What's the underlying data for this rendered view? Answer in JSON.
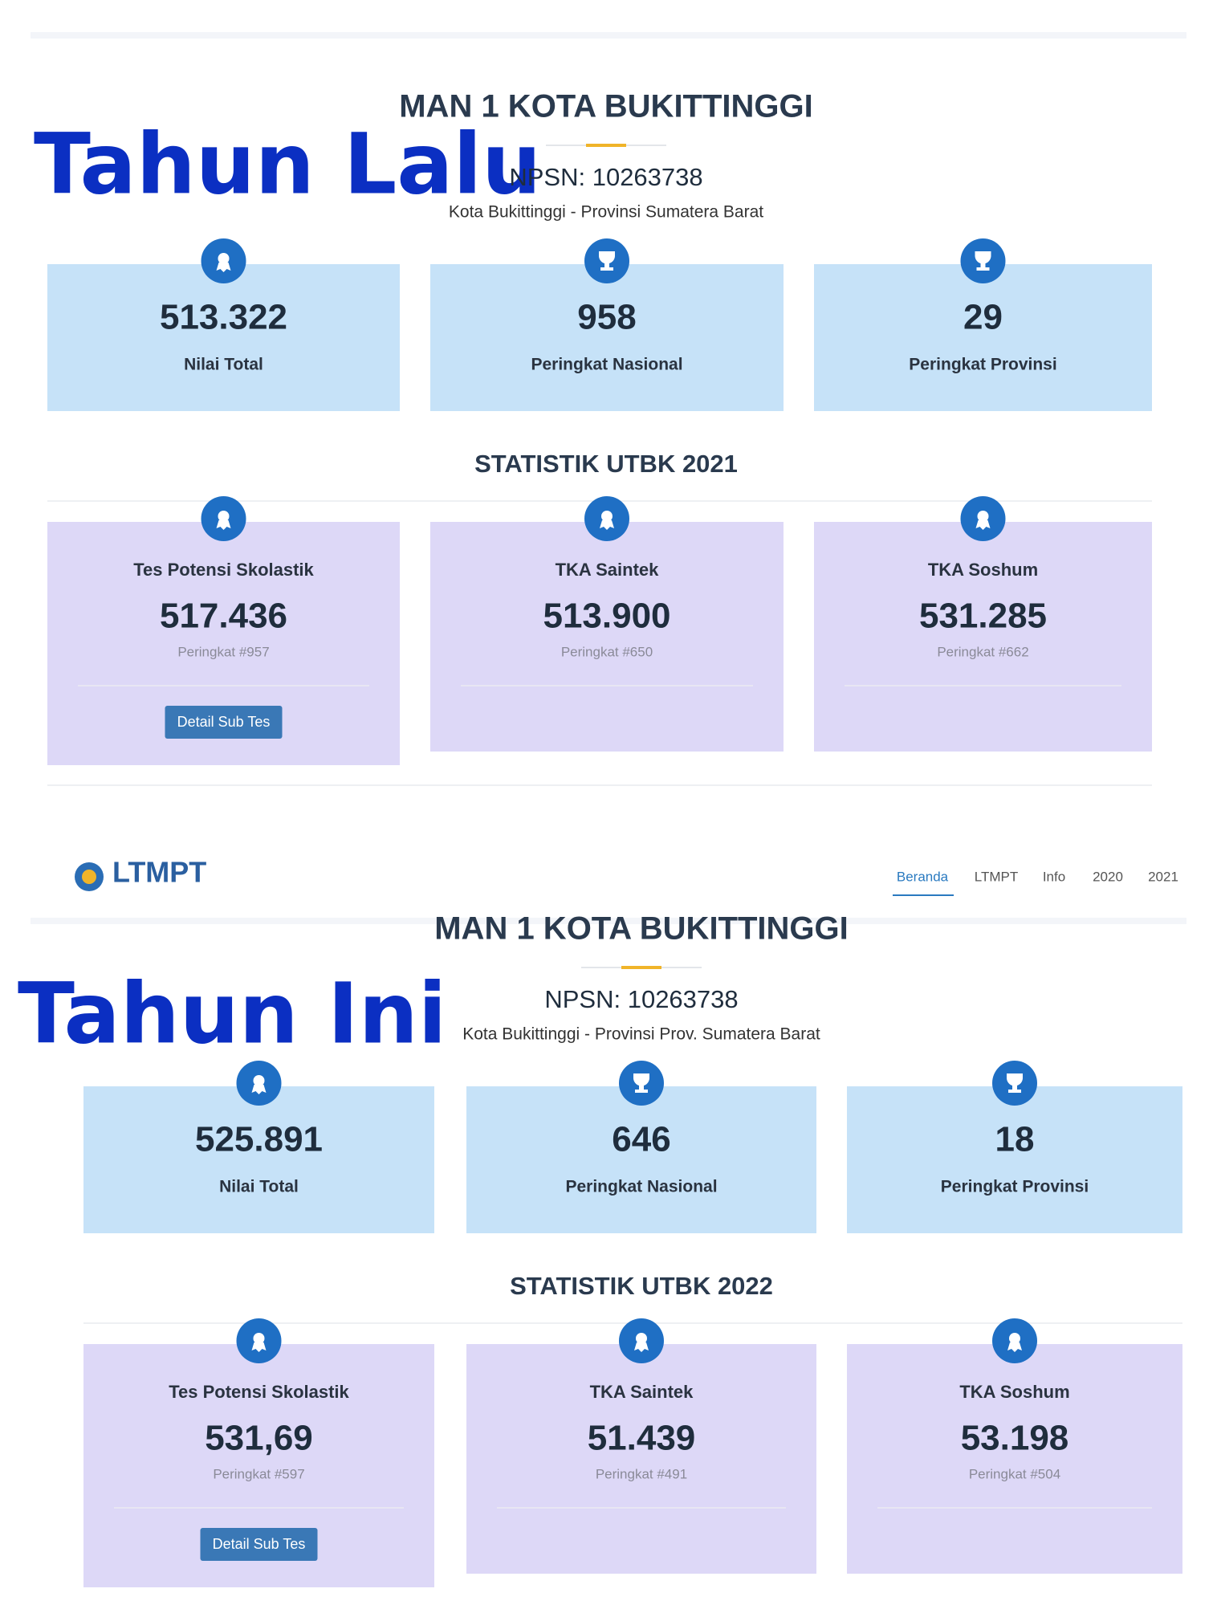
{
  "annotations": [
    "Tahun Lalu",
    "Tahun Ini"
  ],
  "navbar": {
    "brand": "LTMPT",
    "links": [
      "Beranda",
      "LTMPT",
      "Info",
      "2020",
      "2021"
    ]
  },
  "panels": [
    {
      "school": "MAN 1 KOTA BUKITTINGGI",
      "npsn": "NPSN: 10263738",
      "location": "Kota Bukittinggi - Provinsi Sumatera Barat",
      "summary": [
        {
          "value": "513.322",
          "label": "Nilai Total"
        },
        {
          "value": "958",
          "label": "Peringkat Nasional"
        },
        {
          "value": "29",
          "label": "Peringkat Provinsi"
        }
      ],
      "stats_title": "STATISTIK UTBK 2021",
      "stats": [
        {
          "title": "Tes Potensi Skolastik",
          "value": "517.436",
          "rank": "Peringkat #957",
          "button": "Detail Sub Tes"
        },
        {
          "title": "TKA Saintek",
          "value": "513.900",
          "rank": "Peringkat #650"
        },
        {
          "title": "TKA Soshum",
          "value": "531.285",
          "rank": "Peringkat #662"
        }
      ]
    },
    {
      "school": "MAN 1 KOTA BUKITTINGGI",
      "npsn": "NPSN: 10263738",
      "location": "Kota Bukittinggi - Provinsi Prov. Sumatera Barat",
      "summary": [
        {
          "value": "525.891",
          "label": "Nilai Total"
        },
        {
          "value": "646",
          "label": "Peringkat Nasional"
        },
        {
          "value": "18",
          "label": "Peringkat Provinsi"
        }
      ],
      "stats_title": "STATISTIK UTBK 2022",
      "stats": [
        {
          "title": "Tes Potensi Skolastik",
          "value": "531,69",
          "rank": "Peringkat #597",
          "button": "Detail Sub Tes"
        },
        {
          "title": "TKA Saintek",
          "value": "51.439",
          "rank": "Peringkat #491"
        },
        {
          "title": "TKA Soshum",
          "value": "53.198",
          "rank": "Peringkat #504"
        }
      ]
    }
  ]
}
